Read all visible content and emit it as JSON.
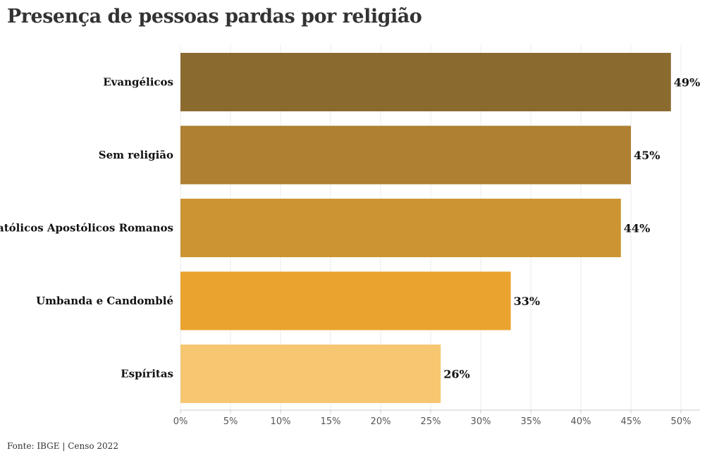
{
  "title": "Presença de pessoas pardas por religião",
  "source": "Fonte: IBGE | Censo 2022",
  "chart_data": {
    "type": "bar",
    "orientation": "horizontal",
    "title": "Presença de pessoas pardas por religião",
    "categories": [
      "Evangélicos",
      "Sem religião",
      "Católicos Apostólicos Romanos",
      "Umbanda e Candomblé",
      "Espíritas"
    ],
    "values": [
      49,
      45,
      44,
      33,
      26
    ],
    "value_labels": [
      "49%",
      "45%",
      "44%",
      "33%",
      "26%"
    ],
    "bar_colors": [
      "#8b6a30",
      "#af7f32",
      "#cc9432",
      "#eba32f",
      "#f6c671"
    ],
    "xlim": [
      0,
      50
    ],
    "x_ticks": [
      0,
      5,
      10,
      15,
      20,
      25,
      30,
      35,
      40,
      45,
      50
    ],
    "x_tick_labels": [
      "0%",
      "5%",
      "10%",
      "15%",
      "20%",
      "25%",
      "30%",
      "35%",
      "40%",
      "45%",
      "50%"
    ],
    "xlabel": "",
    "ylabel": "",
    "grid": "vertical"
  }
}
